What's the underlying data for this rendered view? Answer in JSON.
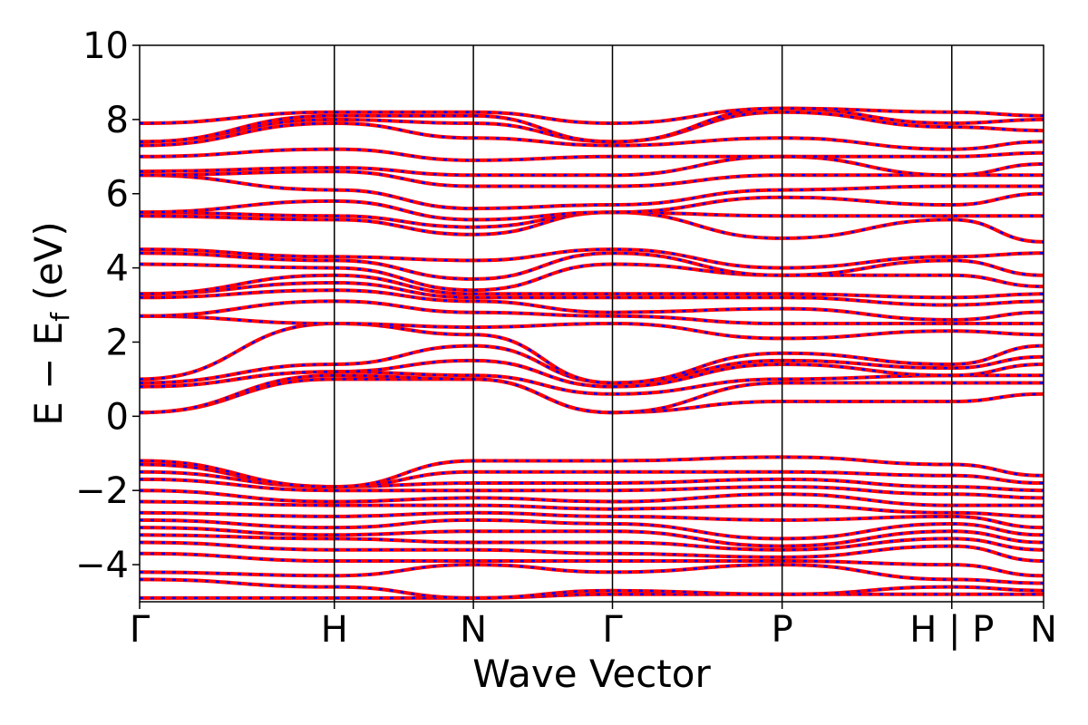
{
  "chart_data": {
    "type": "line",
    "title": "",
    "xlabel": "Wave Vector",
    "ylabel": "E − E_f (eV)",
    "ylabel_main": "E − E",
    "ylabel_sub": "f",
    "ylabel_unit": " (eV)",
    "ylim": [
      -5,
      10
    ],
    "yticks": [
      -4,
      -2,
      0,
      2,
      4,
      6,
      8,
      10
    ],
    "ytick_labels": [
      "−4",
      "−2",
      "0",
      "2",
      "4",
      "6",
      "8",
      "10"
    ],
    "xlim": [
      0,
      6.5
    ],
    "kpoints": [
      {
        "label": "Γ",
        "x": 0
      },
      {
        "label": "H",
        "x": 1.4
      },
      {
        "label": "N",
        "x": 2.4
      },
      {
        "label": "Γ",
        "x": 3.4
      },
      {
        "label": "P",
        "x": 4.62
      },
      {
        "label": "H | P",
        "x": 5.84
      },
      {
        "label": "N",
        "x": 6.5
      }
    ],
    "grid": false,
    "legend": "none",
    "colors": {
      "series_a": "#ff0000",
      "series_b": "#0000ff",
      "divider": "#000000"
    },
    "segment_breaks": [
      0,
      1.4,
      2.4,
      3.4,
      4.62,
      5.84,
      6.5
    ],
    "series": [
      {
        "values": [
          [
            -4.9,
            -4.9,
            -4.9,
            -4.8,
            -4.8,
            -4.8,
            -4.8
          ],
          [
            -4.4,
            -4.6,
            -4.9,
            -4.7,
            -4.8,
            -4.6,
            -4.7
          ],
          [
            -4.2,
            -4.3,
            -4.0,
            -4.2,
            -4.0,
            -4.4,
            -4.5
          ],
          [
            -3.7,
            -3.9,
            -3.9,
            -3.9,
            -3.9,
            -4.0,
            -4.3
          ],
          [
            -3.4,
            -3.6,
            -3.6,
            -3.7,
            -3.8,
            -3.5,
            -3.9
          ],
          [
            -3.2,
            -3.3,
            -3.4,
            -3.4,
            -3.6,
            -3.3,
            -3.6
          ],
          [
            -3.0,
            -3.2,
            -3.1,
            -3.1,
            -3.5,
            -3.1,
            -3.4
          ],
          [
            -2.8,
            -3.0,
            -2.8,
            -2.9,
            -3.3,
            -2.9,
            -3.2
          ],
          [
            -2.6,
            -2.7,
            -2.6,
            -2.7,
            -2.8,
            -2.7,
            -3.0
          ],
          [
            -2.3,
            -2.4,
            -2.4,
            -2.5,
            -2.4,
            -2.6,
            -2.7
          ],
          [
            -2.0,
            -2.3,
            -2.2,
            -2.3,
            -2.1,
            -2.4,
            -2.4
          ],
          [
            -1.7,
            -2.0,
            -2.0,
            -2.0,
            -1.9,
            -2.1,
            -2.2
          ],
          [
            -1.5,
            -1.9,
            -1.8,
            -1.8,
            -1.7,
            -1.9,
            -2.0
          ],
          [
            -1.3,
            -1.9,
            -1.5,
            -1.5,
            -1.5,
            -1.6,
            -1.8
          ],
          [
            -1.2,
            -1.9,
            -1.2,
            -1.2,
            -1.1,
            -1.3,
            -1.6
          ],
          [
            0.1,
            1.0,
            1.0,
            0.1,
            0.4,
            0.4,
            0.6
          ],
          [
            0.1,
            1.1,
            1.0,
            0.1,
            0.9,
            0.9,
            0.9
          ],
          [
            0.8,
            1.2,
            1.1,
            0.6,
            1.0,
            1.1,
            1.1
          ],
          [
            0.8,
            1.2,
            1.5,
            0.8,
            1.4,
            1.1,
            1.4
          ],
          [
            0.9,
            1.4,
            1.9,
            0.9,
            1.5,
            1.3,
            1.6
          ],
          [
            1.0,
            2.5,
            2.2,
            0.9,
            1.7,
            1.4,
            1.9
          ],
          [
            2.7,
            2.5,
            2.4,
            2.5,
            2.1,
            2.3,
            2.2
          ],
          [
            2.7,
            3.1,
            2.8,
            2.7,
            2.5,
            2.5,
            2.5
          ],
          [
            3.2,
            3.4,
            3.1,
            2.8,
            2.9,
            2.6,
            2.8
          ],
          [
            3.3,
            3.6,
            3.2,
            3.2,
            3.2,
            3.0,
            3.1
          ],
          [
            3.3,
            3.8,
            3.3,
            3.3,
            3.3,
            3.2,
            3.3
          ],
          [
            4.1,
            4.0,
            3.4,
            4.1,
            3.8,
            3.8,
            3.5
          ],
          [
            4.4,
            4.2,
            3.7,
            4.4,
            3.8,
            4.2,
            3.8
          ],
          [
            4.5,
            4.3,
            4.2,
            4.5,
            4.0,
            4.3,
            4.4
          ],
          [
            5.4,
            5.3,
            4.9,
            5.5,
            4.8,
            5.3,
            4.7
          ],
          [
            5.5,
            5.4,
            5.1,
            5.5,
            5.4,
            5.4,
            5.4
          ],
          [
            5.5,
            5.8,
            5.3,
            5.5,
            5.9,
            5.7,
            6.0
          ],
          [
            6.5,
            6.1,
            5.6,
            5.7,
            6.1,
            6.2,
            6.2
          ],
          [
            6.5,
            6.6,
            6.2,
            6.2,
            6.5,
            6.5,
            6.5
          ],
          [
            6.6,
            6.7,
            6.5,
            6.5,
            7.0,
            6.5,
            6.8
          ],
          [
            7.0,
            7.2,
            6.9,
            7.0,
            7.0,
            7.0,
            7.1
          ],
          [
            7.3,
            7.9,
            7.5,
            7.3,
            7.5,
            7.2,
            7.4
          ],
          [
            7.4,
            8.0,
            7.9,
            7.4,
            8.2,
            7.8,
            7.7
          ],
          [
            7.4,
            8.1,
            8.1,
            7.4,
            8.3,
            7.9,
            8.0
          ],
          [
            7.9,
            8.2,
            8.2,
            7.9,
            8.3,
            8.2,
            8.1
          ]
        ]
      }
    ]
  }
}
